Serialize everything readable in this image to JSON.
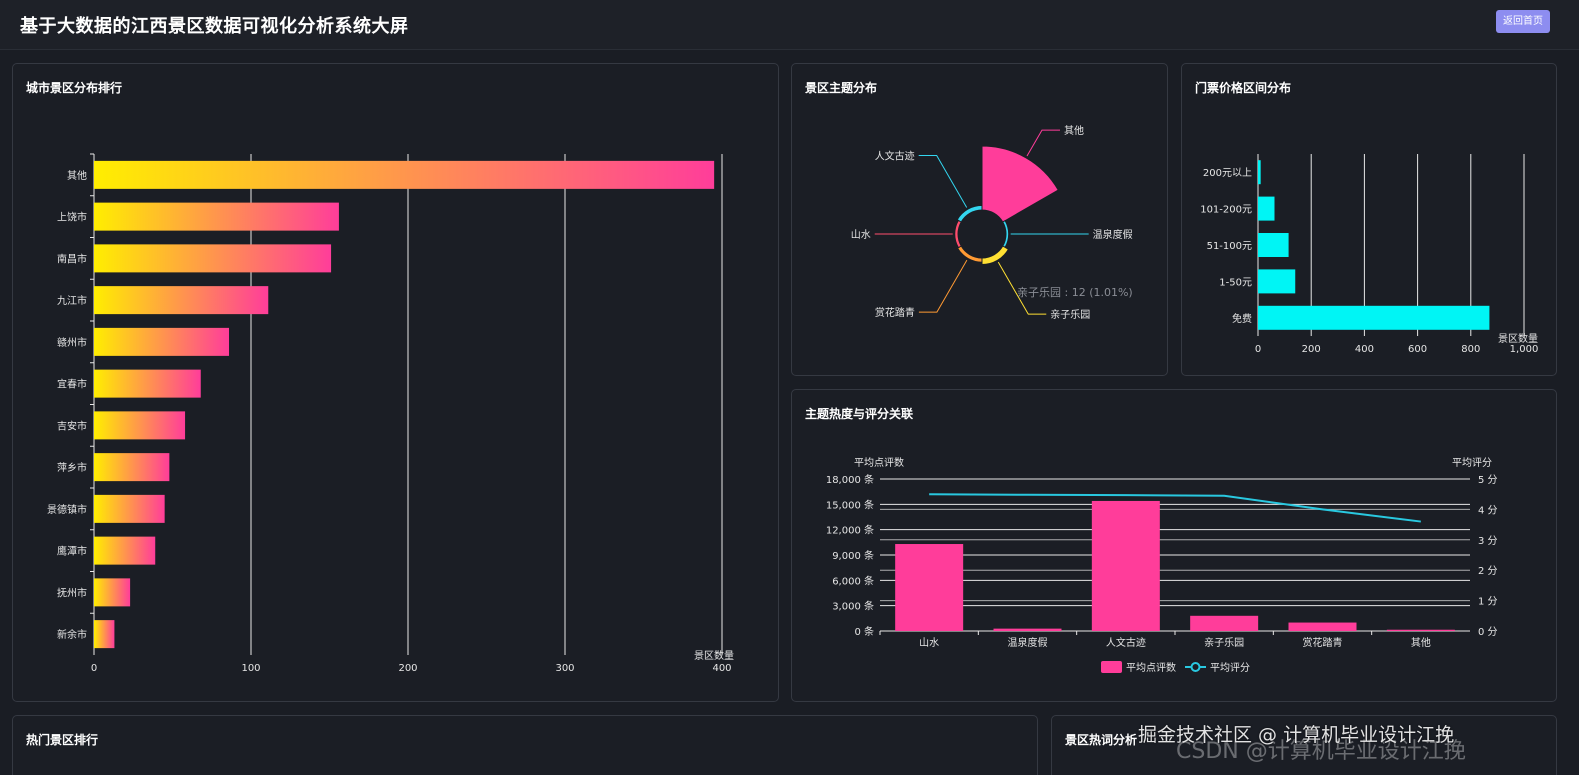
{
  "header": {
    "title": "基于大数据的江西景区数据可视化分析系统大屏",
    "home_button": "返回首页"
  },
  "panels": {
    "city": {
      "title": "城市景区分布排行"
    },
    "theme": {
      "title": "景区主题分布"
    },
    "price": {
      "title": "门票价格区间分布"
    },
    "heat": {
      "title": "主题热度与评分关联"
    },
    "hot": {
      "title": "热门景区排行"
    },
    "words": {
      "title": "景区热词分析"
    }
  },
  "watermark": {
    "line1": "掘金技术社区 @ 计算机毕业设计江挽",
    "line2": "CSDN @计算机毕业设计江挽"
  },
  "colors": {
    "gradient_start": "#ffee00",
    "gradient_end": "#ff3d9a",
    "cyan": "#00f5f5",
    "pink": "#ff3d9a",
    "line": "#29c8e0"
  },
  "chart_data": [
    {
      "id": "city",
      "type": "bar",
      "orientation": "horizontal",
      "categories": [
        "其他",
        "上饶市",
        "南昌市",
        "九江市",
        "赣州市",
        "宜春市",
        "吉安市",
        "萍乡市",
        "景德镇市",
        "鹰潭市",
        "抚州市",
        "新余市"
      ],
      "values": [
        395,
        156,
        151,
        111,
        86,
        68,
        58,
        48,
        45,
        39,
        23,
        13
      ],
      "xlabel": "景区数量",
      "xlim": [
        0,
        400
      ],
      "xticks": [
        "0",
        "100",
        "200",
        "300",
        "400"
      ],
      "grid": true
    },
    {
      "id": "theme",
      "type": "pie",
      "rose": true,
      "categories": [
        "其他",
        "温泉度假",
        "亲子乐园",
        "赏花踏青",
        "山水",
        "人文古迹"
      ],
      "values": [
        1150,
        2,
        12,
        5,
        3,
        6
      ],
      "colors": [
        "#ff3d9a",
        "#33d6f0",
        "#ffe033",
        "#ff9a33",
        "#ff4d6d",
        "#33d6f0"
      ],
      "tooltip": "亲子乐园 : 12 (1.01%)"
    },
    {
      "id": "price",
      "type": "bar",
      "orientation": "horizontal",
      "categories": [
        "200元以上",
        "101-200元",
        "51-100元",
        "1-50元",
        "免费"
      ],
      "values": [
        10,
        62,
        115,
        140,
        870
      ],
      "xlabel": "景区数量",
      "xlim": [
        0,
        1000
      ],
      "xticks": [
        "0",
        "200",
        "400",
        "600",
        "800",
        "1,000"
      ],
      "grid": true
    },
    {
      "id": "heat",
      "type": "bar",
      "categories": [
        "山水",
        "温泉度假",
        "人文古迹",
        "亲子乐园",
        "赏花踏青",
        "其他"
      ],
      "series": [
        {
          "name": "平均点评数",
          "type": "bar",
          "values": [
            10300,
            280,
            15400,
            1800,
            1000,
            150
          ]
        },
        {
          "name": "平均评分",
          "type": "line",
          "values": [
            4.5,
            4.48,
            4.47,
            4.45,
            4.0,
            3.6
          ]
        }
      ],
      "ylabel": "平均点评数",
      "ylabel2": "平均评分",
      "ylim": [
        0,
        18000
      ],
      "ylim2": [
        0,
        5
      ],
      "yticks": [
        "0 条",
        "3,000 条",
        "6,000 条",
        "9,000 条",
        "12,000 条",
        "15,000 条",
        "18,000 条"
      ],
      "yticks2": [
        "0 分",
        "1 分",
        "2 分",
        "3 分",
        "4 分",
        "5 分"
      ],
      "legend_position": "bottom"
    }
  ]
}
